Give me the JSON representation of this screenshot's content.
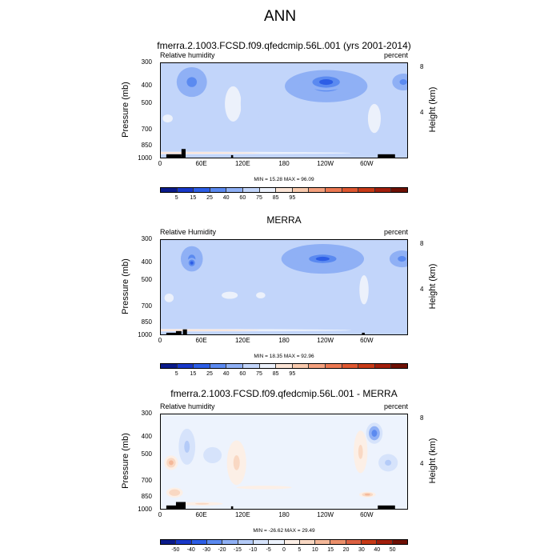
{
  "main_title": "ANN",
  "colors": {
    "abs_palette": [
      "#0a1a8a",
      "#1838c8",
      "#2d5ee6",
      "#5b8af0",
      "#8fb0f5",
      "#c2d5fa",
      "#ecf1fb",
      "#fbe4d6",
      "#f8c9ad",
      "#f4a07e",
      "#eb7852",
      "#de5730",
      "#c73a17",
      "#a11e0c",
      "#6e1004"
    ],
    "diff_palette": [
      "#0a1a8a",
      "#1838c8",
      "#2d5ee6",
      "#5b8af0",
      "#8fb0f5",
      "#b4cbf8",
      "#d6e3fb",
      "#edf3fd",
      "#fcefe6",
      "#f9d8c3",
      "#f4b899",
      "#eb8f6b",
      "#dc6142",
      "#c73a17",
      "#a11e0c",
      "#6e1004"
    ],
    "land_mask": "#000000"
  },
  "axes": {
    "ylabel": "Pressure (mb)",
    "rlabel": "Height (km)",
    "yticks": [
      "300",
      "400",
      "500",
      "700",
      "850",
      "1000"
    ],
    "rticks": [
      "8",
      "4"
    ],
    "xticks": [
      "0",
      "60E",
      "120E",
      "180",
      "120W",
      "60W"
    ]
  },
  "panels": [
    {
      "title": "fmerra.2.1003.FCSD.f09.qfedcmip.56L.001 (yrs 2001-2014)",
      "left_label": "Relative humidity",
      "right_label": "percent",
      "minmax": "MIN = 15.28  MAX = 96.09",
      "cbar_ticks": [
        "5",
        "15",
        "25",
        "40",
        "60",
        "75",
        "85",
        "95"
      ]
    },
    {
      "title": "MERRA",
      "left_label": "Relative Humidity",
      "right_label": "percent",
      "minmax": "MIN = 18.35  MAX = 92.96",
      "cbar_ticks": [
        "5",
        "15",
        "25",
        "40",
        "60",
        "75",
        "85",
        "95"
      ]
    },
    {
      "title": "fmerra.2.1003.FCSD.f09.qfedcmip.56L.001 - MERRA",
      "left_label": "Relative humidity",
      "right_label": "percent",
      "minmax": "MIN = -26.62  MAX = 29.49",
      "cbar_ticks": [
        "-50",
        "-40",
        "-30",
        "-20",
        "-15",
        "-10",
        "-5",
        "0",
        "5",
        "10",
        "15",
        "20",
        "30",
        "40",
        "50"
      ]
    }
  ],
  "chart_data": [
    {
      "type": "heatmap",
      "title": "fmerra.2.1003.FCSD.f09.qfedcmip.56L.001 (yrs 2001-2014)",
      "xlabel": "",
      "ylabel": "Pressure (mb)",
      "y2label": "Height (km)",
      "xlim": [
        0,
        360
      ],
      "ylim": [
        1000,
        300
      ],
      "x_ticks": [
        "0",
        "60E",
        "120E",
        "180",
        "120W",
        "60W"
      ],
      "y_ticks": [
        300,
        400,
        500,
        700,
        850,
        1000
      ],
      "y2_ticks": [
        8,
        4
      ],
      "levels": [
        5,
        15,
        25,
        40,
        60,
        75,
        85,
        95
      ],
      "min": 15.28,
      "max": 96.09,
      "fields": [
        {
          "kind": "bg",
          "value": 62
        },
        {
          "kind": "band",
          "lat": 10,
          "p": 925,
          "w": 400,
          "h": 45,
          "value": 86
        },
        {
          "kind": "band",
          "lat": 10,
          "p": 840,
          "w": 400,
          "h": 60,
          "value": 72
        },
        {
          "kind": "blob",
          "lat": 10,
          "p": 600,
          "w": 22,
          "h": 180,
          "value": 80
        },
        {
          "kind": "blob",
          "lat": 45,
          "p": 380,
          "w": 12,
          "h": 80,
          "value": 12
        },
        {
          "kind": "blob",
          "lat": 45,
          "p": 380,
          "w": 22,
          "h": 140,
          "value": 30
        },
        {
          "kind": "blob",
          "lat": 105,
          "p": 500,
          "w": 18,
          "h": 320,
          "value": 82
        },
        {
          "kind": "blob",
          "lat": 130,
          "p": 500,
          "w": 14,
          "h": 320,
          "value": 74
        },
        {
          "kind": "blob",
          "lat": 240,
          "p": 400,
          "w": 60,
          "h": 160,
          "value": 38
        },
        {
          "kind": "blob",
          "lat": 240,
          "p": 380,
          "w": 30,
          "h": 80,
          "value": 22
        },
        {
          "kind": "blob",
          "lat": 310,
          "p": 600,
          "w": 14,
          "h": 320,
          "value": 85
        },
        {
          "kind": "blob",
          "lat": 352,
          "p": 380,
          "w": 16,
          "h": 80,
          "value": 30
        }
      ],
      "land": [
        [
          8,
          940,
          30,
          1000
        ],
        [
          30,
          880,
          36,
          1000
        ],
        [
          102,
          950,
          105,
          1000
        ],
        [
          315,
          940,
          340,
          1000
        ]
      ]
    },
    {
      "type": "heatmap",
      "title": "MERRA",
      "xlabel": "",
      "ylabel": "Pressure (mb)",
      "y2label": "Height (km)",
      "xlim": [
        0,
        360
      ],
      "ylim": [
        1000,
        300
      ],
      "x_ticks": [
        "0",
        "60E",
        "120E",
        "180",
        "120W",
        "60W"
      ],
      "y_ticks": [
        300,
        400,
        500,
        700,
        850,
        1000
      ],
      "y2_ticks": [
        8,
        4
      ],
      "levels": [
        5,
        15,
        25,
        40,
        60,
        75,
        85,
        95
      ],
      "min": 18.35,
      "max": 92.96,
      "fields": [
        {
          "kind": "bg",
          "value": 68
        },
        {
          "kind": "band",
          "lat": 10,
          "p": 930,
          "w": 400,
          "h": 45,
          "value": 86
        },
        {
          "kind": "band",
          "lat": 10,
          "p": 840,
          "w": 400,
          "h": 50,
          "value": 75
        },
        {
          "kind": "blob",
          "lat": 12,
          "p": 620,
          "w": 20,
          "h": 200,
          "value": 78
        },
        {
          "kind": "blob",
          "lat": 45,
          "p": 380,
          "w": 16,
          "h": 120,
          "value": 30
        },
        {
          "kind": "blob",
          "lat": 45,
          "p": 400,
          "w": 7,
          "h": 50,
          "value": 18
        },
        {
          "kind": "blob",
          "lat": 100,
          "p": 600,
          "w": 35,
          "h": 160,
          "value": 76
        },
        {
          "kind": "blob",
          "lat": 145,
          "p": 600,
          "w": 20,
          "h": 140,
          "value": 76
        },
        {
          "kind": "blob",
          "lat": 235,
          "p": 380,
          "w": 60,
          "h": 140,
          "value": 40
        },
        {
          "kind": "blob",
          "lat": 235,
          "p": 380,
          "w": 30,
          "h": 60,
          "value": 22
        },
        {
          "kind": "blob",
          "lat": 295,
          "p": 560,
          "w": 10,
          "h": 300,
          "value": 84
        },
        {
          "kind": "blob",
          "lat": 350,
          "p": 380,
          "w": 18,
          "h": 80,
          "value": 34
        }
      ],
      "land": [
        [
          8,
          960,
          22,
          1000
        ],
        [
          22,
          940,
          30,
          1000
        ],
        [
          32,
          920,
          38,
          1000
        ],
        [
          292,
          960,
          296,
          1000
        ]
      ]
    },
    {
      "type": "heatmap",
      "title": "fmerra.2.1003.FCSD.f09.qfedcmip.56L.001 - MERRA",
      "xlabel": "",
      "ylabel": "Pressure (mb)",
      "y2label": "Height (km)",
      "xlim": [
        0,
        360
      ],
      "ylim": [
        1000,
        300
      ],
      "x_ticks": [
        "0",
        "60E",
        "120E",
        "180",
        "120W",
        "60W"
      ],
      "y_ticks": [
        300,
        400,
        500,
        700,
        850,
        1000
      ],
      "y2_ticks": [
        8,
        4
      ],
      "levels": [
        -50,
        -40,
        -30,
        -20,
        -15,
        -10,
        -5,
        0,
        5,
        10,
        15,
        20,
        30,
        40,
        50
      ],
      "min": -26.62,
      "max": 29.49,
      "fields": [
        {
          "kind": "bg",
          "value": -3
        },
        {
          "kind": "blob",
          "lat": 15,
          "p": 550,
          "w": 10,
          "h": 100,
          "value": 12
        },
        {
          "kind": "blob",
          "lat": 20,
          "p": 800,
          "w": 12,
          "h": 100,
          "value": 10
        },
        {
          "kind": "blob",
          "lat": 38,
          "p": 450,
          "w": 12,
          "h": 200,
          "value": -10
        },
        {
          "kind": "blob",
          "lat": 75,
          "p": 500,
          "w": 20,
          "h": 150,
          "value": -8
        },
        {
          "kind": "blob",
          "lat": 110,
          "p": 550,
          "w": 14,
          "h": 300,
          "value": 8
        },
        {
          "kind": "blob",
          "lat": 150,
          "p": 750,
          "w": 60,
          "h": 50,
          "value": 5
        },
        {
          "kind": "blob",
          "lat": 290,
          "p": 480,
          "w": 10,
          "h": 250,
          "value": 8
        },
        {
          "kind": "blob",
          "lat": 310,
          "p": 380,
          "w": 12,
          "h": 100,
          "value": -22
        },
        {
          "kind": "blob",
          "lat": 330,
          "p": 550,
          "w": 14,
          "h": 120,
          "value": -10
        },
        {
          "kind": "blob",
          "lat": 300,
          "p": 820,
          "w": 12,
          "h": 60,
          "value": 12
        },
        {
          "kind": "blob",
          "lat": 60,
          "p": 920,
          "w": 30,
          "h": 40,
          "value": 8
        }
      ],
      "land": [
        [
          8,
          940,
          30,
          1000
        ],
        [
          22,
          900,
          36,
          1000
        ],
        [
          102,
          950,
          105,
          1000
        ],
        [
          315,
          940,
          340,
          1000
        ]
      ]
    }
  ]
}
